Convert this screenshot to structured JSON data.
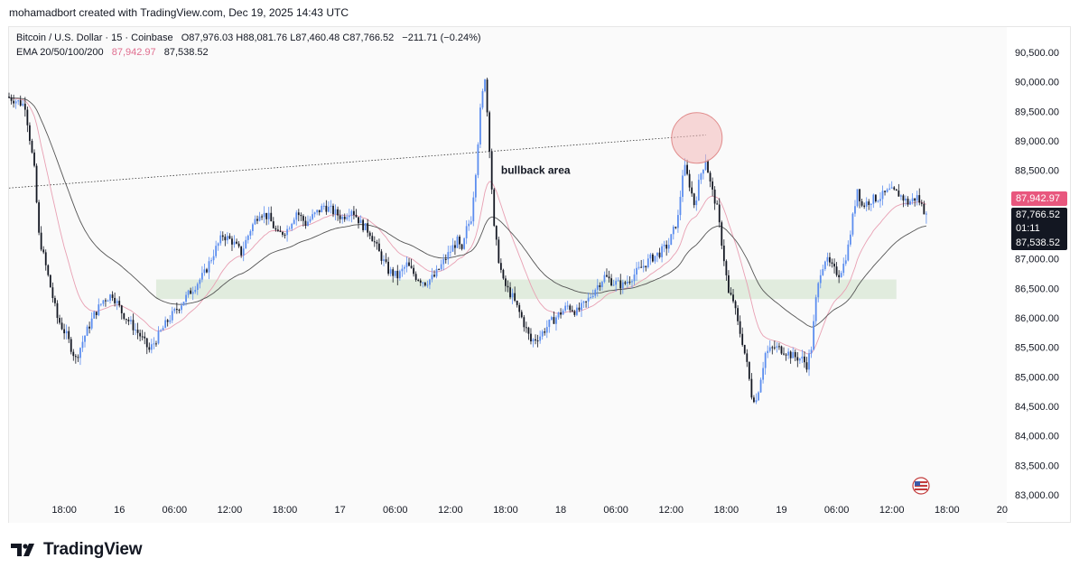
{
  "header": {
    "credit": "mohamadbort created with TradingView.com, Dec 19, 2025 14:43 UTC"
  },
  "legend": {
    "symbol": "Bitcoin / U.S. Dollar · 15 · Coinbase",
    "open": "O87,976.03",
    "high": "H88,081.76",
    "low": "L87,460.48",
    "close": "C87,766.52",
    "change": "−211.71 (−0.24%)",
    "ema_label": "EMA 20/50/100/200",
    "ema20_value": "87,942.97",
    "ema50_value": "87,538.52"
  },
  "price_tags": {
    "ema20": "87,942.97",
    "last": "87,766.52",
    "countdown": "01:11",
    "ema50": "87,538.52"
  },
  "annotation": {
    "text": "bullback area"
  },
  "footer": {
    "brand": "TradingView"
  },
  "colors": {
    "up": "#5b8def",
    "down": "#131722",
    "ema20": "#e8a0b3",
    "ema50": "#555555",
    "zone": "#d5e6d2",
    "circle": "#f2b8b8",
    "tag_pink": "#e8577e",
    "tag_dark": "#131722"
  },
  "chart_data": {
    "type": "candlestick",
    "symbol": "Bitcoin / U.S. Dollar",
    "interval": "15",
    "exchange": "Coinbase",
    "ylim": [
      83000,
      90700
    ],
    "y_ticks": [
      "90,500.00",
      "90,000.00",
      "89,500.00",
      "89,000.00",
      "88,500.00",
      "88,000.00",
      "87,500.00",
      "87,000.00",
      "86,500.00",
      "86,000.00",
      "85,500.00",
      "85,000.00",
      "84,500.00",
      "84,000.00",
      "83,500.00",
      "83,000.00"
    ],
    "y_tick_values": [
      90500,
      90000,
      89500,
      89000,
      88500,
      88000,
      87500,
      87000,
      86500,
      86000,
      85500,
      85000,
      84500,
      84000,
      83500,
      83000
    ],
    "x_ticks": [
      {
        "label": "18:00",
        "t": 6
      },
      {
        "label": "16",
        "t": 12
      },
      {
        "label": "06:00",
        "t": 18
      },
      {
        "label": "12:00",
        "t": 24
      },
      {
        "label": "18:00",
        "t": 30
      },
      {
        "label": "17",
        "t": 36
      },
      {
        "label": "06:00",
        "t": 42
      },
      {
        "label": "12:00",
        "t": 48
      },
      {
        "label": "18:00",
        "t": 54
      },
      {
        "label": "18",
        "t": 60
      },
      {
        "label": "06:00",
        "t": 66
      },
      {
        "label": "12:00",
        "t": 72
      },
      {
        "label": "18:00",
        "t": 78
      },
      {
        "label": "19",
        "t": 84
      },
      {
        "label": "06:00",
        "t": 90
      },
      {
        "label": "12:00",
        "t": 96
      },
      {
        "label": "18:00",
        "t": 102
      },
      {
        "label": "20",
        "t": 108
      }
    ],
    "t_range": [
      0,
      108.5
    ],
    "price_path": [
      [
        0.0,
        89750
      ],
      [
        0.8,
        89700
      ],
      [
        2.0,
        89600
      ],
      [
        3.0,
        88500
      ],
      [
        3.5,
        87400
      ],
      [
        4.5,
        86700
      ],
      [
        5.5,
        86000
      ],
      [
        6.5,
        85700
      ],
      [
        7.5,
        85300
      ],
      [
        8.5,
        85700
      ],
      [
        9.5,
        86050
      ],
      [
        10.5,
        86300
      ],
      [
        11.5,
        86400
      ],
      [
        12.5,
        86100
      ],
      [
        13.5,
        85900
      ],
      [
        14.5,
        85700
      ],
      [
        15.5,
        85450
      ],
      [
        16.5,
        85700
      ],
      [
        17.5,
        85950
      ],
      [
        18.5,
        86150
      ],
      [
        19.5,
        86350
      ],
      [
        20.5,
        86550
      ],
      [
        21.5,
        86750
      ],
      [
        22.5,
        87100
      ],
      [
        23.5,
        87400
      ],
      [
        24.5,
        87300
      ],
      [
        25.5,
        87100
      ],
      [
        26.5,
        87500
      ],
      [
        27.5,
        87800
      ],
      [
        28.5,
        87700
      ],
      [
        29.5,
        87400
      ],
      [
        30.5,
        87500
      ],
      [
        31.5,
        87800
      ],
      [
        32.5,
        87600
      ],
      [
        33.5,
        87750
      ],
      [
        34.5,
        87900
      ],
      [
        35.5,
        87800
      ],
      [
        36.5,
        87700
      ],
      [
        37.5,
        87850
      ],
      [
        38.5,
        87600
      ],
      [
        39.5,
        87450
      ],
      [
        40.5,
        87100
      ],
      [
        41.5,
        86800
      ],
      [
        42.5,
        86700
      ],
      [
        43.5,
        86900
      ],
      [
        44.5,
        86700
      ],
      [
        45.5,
        86600
      ],
      [
        46.5,
        86700
      ],
      [
        47.5,
        86950
      ],
      [
        48.5,
        87200
      ],
      [
        49.0,
        87300
      ],
      [
        49.5,
        87100
      ],
      [
        50.0,
        87500
      ],
      [
        50.5,
        87700
      ],
      [
        51.0,
        88500
      ],
      [
        51.5,
        89500
      ],
      [
        52.0,
        90100
      ],
      [
        52.5,
        88900
      ],
      [
        53.0,
        87500
      ],
      [
        53.5,
        87000
      ],
      [
        54.0,
        86600
      ],
      [
        55.0,
        86350
      ],
      [
        56.0,
        86000
      ],
      [
        57.0,
        85600
      ],
      [
        58.0,
        85700
      ],
      [
        59.0,
        85900
      ],
      [
        60.0,
        86050
      ],
      [
        61.0,
        86200
      ],
      [
        62.0,
        86100
      ],
      [
        63.0,
        86250
      ],
      [
        64.0,
        86500
      ],
      [
        65.0,
        86700
      ],
      [
        66.0,
        86600
      ],
      [
        67.0,
        86550
      ],
      [
        68.0,
        86700
      ],
      [
        69.0,
        86850
      ],
      [
        70.0,
        87000
      ],
      [
        71.0,
        87100
      ],
      [
        72.0,
        87250
      ],
      [
        73.0,
        87700
      ],
      [
        73.6,
        88600
      ],
      [
        74.2,
        88300
      ],
      [
        74.8,
        87900
      ],
      [
        75.4,
        88400
      ],
      [
        76.0,
        88700
      ],
      [
        76.6,
        88200
      ],
      [
        77.2,
        87900
      ],
      [
        78.0,
        87000
      ],
      [
        78.5,
        86400
      ],
      [
        79.0,
        86300
      ],
      [
        79.5,
        85900
      ],
      [
        80.0,
        85600
      ],
      [
        80.5,
        85200
      ],
      [
        81.0,
        84700
      ],
      [
        81.5,
        84600
      ],
      [
        82.0,
        85000
      ],
      [
        82.5,
        85400
      ],
      [
        83.5,
        85500
      ],
      [
        84.5,
        85450
      ],
      [
        85.5,
        85350
      ],
      [
        86.5,
        85300
      ],
      [
        87.0,
        85200
      ],
      [
        87.5,
        85500
      ],
      [
        88.0,
        86300
      ],
      [
        88.5,
        86800
      ],
      [
        89.0,
        87000
      ],
      [
        89.5,
        86900
      ],
      [
        90.0,
        86800
      ],
      [
        90.5,
        86750
      ],
      [
        91.0,
        86900
      ],
      [
        91.5,
        87200
      ],
      [
        92.0,
        87700
      ],
      [
        92.5,
        88200
      ],
      [
        93.0,
        87900
      ],
      [
        93.5,
        87950
      ],
      [
        94.0,
        88000
      ],
      [
        95.0,
        88050
      ],
      [
        96.0,
        88150
      ],
      [
        97.0,
        88100
      ],
      [
        98.0,
        87950
      ],
      [
        99.0,
        88050
      ],
      [
        99.5,
        87900
      ],
      [
        99.9,
        87766
      ]
    ],
    "last_close": 87766.52,
    "ema20_level": 87942.97,
    "ema50_level": 87538.52,
    "trendline": {
      "start": [
        0,
        88200
      ],
      "end": [
        75.8,
        89100
      ],
      "style": "dotted"
    },
    "support_zone": {
      "t_start": 16,
      "t_end": 96.5,
      "price_low": 86320,
      "price_high": 86650
    },
    "highlight_circle": {
      "t": 74.8,
      "price": 89050
    },
    "annotations": [
      {
        "text": "bullback area",
        "t": 53.5,
        "price": 88500
      }
    ]
  }
}
